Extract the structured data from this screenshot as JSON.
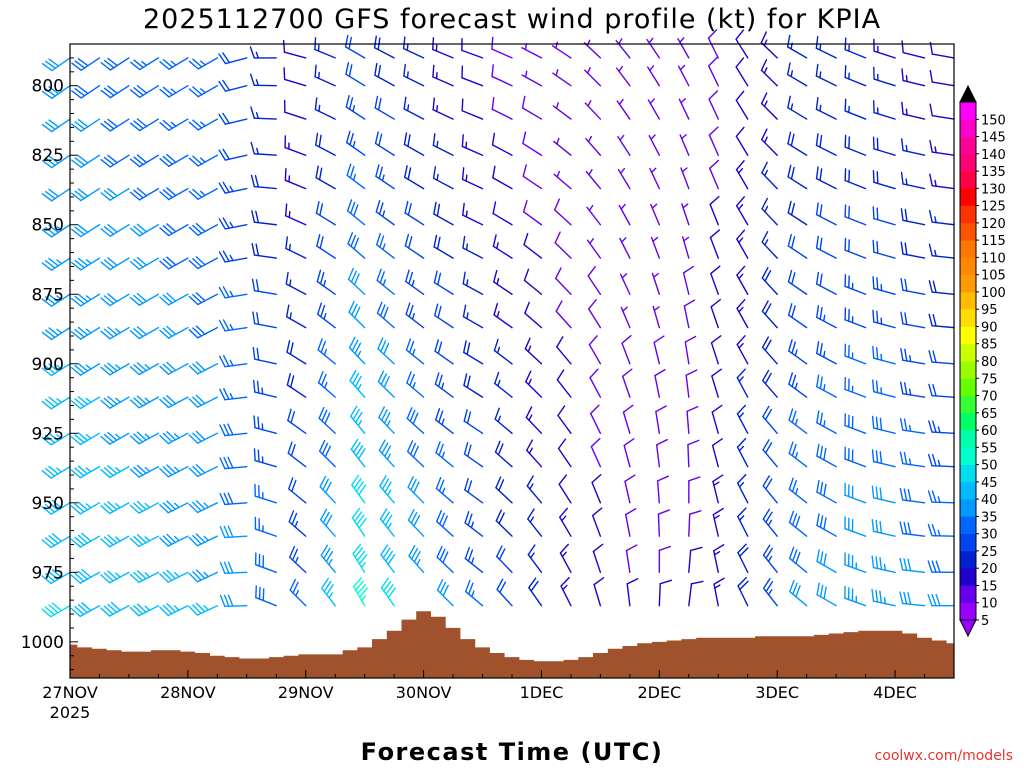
{
  "chart_data": {
    "type": "wind-barb-profile",
    "title": "2025112700 GFS forecast wind profile (kt) for KPIA",
    "xlabel": "Forecast Time (UTC)",
    "ylabel": "",
    "credit": "coolwx.com/models",
    "y_axis": {
      "unit": "hPa",
      "range": [
        785,
        1013
      ],
      "ticks": [
        {
          "value": 800,
          "label": "800"
        },
        {
          "value": 825,
          "label": "825"
        },
        {
          "value": 850,
          "label": "850"
        },
        {
          "value": 875,
          "label": "875"
        },
        {
          "value": 900,
          "label": "900"
        },
        {
          "value": 925,
          "label": "925"
        },
        {
          "value": 950,
          "label": "950"
        },
        {
          "value": 975,
          "label": "975"
        },
        {
          "value": 1000,
          "label": "1000"
        }
      ]
    },
    "x_axis": {
      "unit": "forecast hours",
      "range": [
        0,
        180
      ],
      "ticks": [
        {
          "value": 0,
          "label": "27NOV",
          "sublabel": "2025"
        },
        {
          "value": 24,
          "label": "28NOV",
          "sublabel": ""
        },
        {
          "value": 48,
          "label": "29NOV",
          "sublabel": ""
        },
        {
          "value": 72,
          "label": "30NOV",
          "sublabel": ""
        },
        {
          "value": 96,
          "label": "1DEC",
          "sublabel": ""
        },
        {
          "value": 120,
          "label": "2DEC",
          "sublabel": ""
        },
        {
          "value": 144,
          "label": "3DEC",
          "sublabel": ""
        },
        {
          "value": 168,
          "label": "4DEC",
          "sublabel": ""
        }
      ]
    },
    "levels": [
      790,
      800,
      812,
      825,
      837,
      850,
      862,
      875,
      887,
      900,
      912,
      925,
      937,
      950,
      962,
      975,
      987
    ],
    "times": [
      0,
      6,
      12,
      18,
      24,
      30,
      36,
      42,
      48,
      54,
      60,
      66,
      72,
      78,
      84,
      90,
      96,
      102,
      108,
      114,
      120,
      126,
      132,
      138,
      144,
      150,
      156,
      162,
      168,
      174,
      180
    ],
    "wind_keyframes": [
      {
        "hour": 0,
        "dir": [
          235,
          240
        ],
        "spd": [
          30,
          40
        ]
      },
      {
        "hour": 30,
        "dir": [
          240,
          245
        ],
        "spd": [
          25,
          35
        ]
      },
      {
        "hour": 48,
        "dir": [
          285,
          315
        ],
        "spd": [
          10,
          25
        ]
      },
      {
        "hour": 60,
        "dir": [
          300,
          330
        ],
        "spd": [
          20,
          45
        ]
      },
      {
        "hour": 72,
        "dir": [
          295,
          320
        ],
        "spd": [
          15,
          35
        ]
      },
      {
        "hour": 84,
        "dir": [
          290,
          310
        ],
        "spd": [
          10,
          25
        ]
      },
      {
        "hour": 100,
        "dir": [
          300,
          330
        ],
        "spd": [
          5,
          15
        ]
      },
      {
        "hour": 112,
        "dir": [
          320,
          350
        ],
        "spd": [
          5,
          10
        ]
      },
      {
        "hour": 125,
        "dir": [
          330,
          10
        ],
        "spd": [
          5,
          10
        ]
      },
      {
        "hour": 135,
        "dir": [
          335,
          340
        ],
        "spd": [
          10,
          15
        ]
      },
      {
        "hour": 150,
        "dir": [
          300,
          310
        ],
        "spd": [
          15,
          30
        ]
      },
      {
        "hour": 165,
        "dir": [
          290,
          285
        ],
        "spd": [
          15,
          35
        ]
      },
      {
        "hour": 180,
        "dir": [
          280,
          270
        ],
        "spd": [
          10,
          30
        ]
      }
    ],
    "surface_pressure": {
      "hours": [
        0,
        3,
        6,
        9,
        12,
        15,
        18,
        21,
        24,
        27,
        30,
        33,
        36,
        39,
        42,
        45,
        48,
        51,
        54,
        57,
        60,
        63,
        66,
        69,
        72,
        75,
        78,
        81,
        84,
        87,
        90,
        93,
        96,
        99,
        102,
        105,
        108,
        111,
        114,
        117,
        120,
        123,
        126,
        129,
        132,
        135,
        138,
        141,
        144,
        147,
        150,
        153,
        156,
        159,
        162,
        165,
        168,
        171,
        174,
        177,
        180
      ],
      "values": [
        1001,
        1002,
        1002.5,
        1003,
        1003.5,
        1003.5,
        1003,
        1003,
        1003.5,
        1004,
        1005,
        1005.5,
        1006,
        1006,
        1005.5,
        1005,
        1004.5,
        1004.5,
        1004.5,
        1003,
        1002,
        999,
        996,
        992,
        989,
        991,
        995,
        999,
        1002,
        1004,
        1005.5,
        1006.5,
        1007,
        1007,
        1006.5,
        1005.5,
        1004,
        1002.5,
        1001.5,
        1000.5,
        1000,
        999.5,
        999,
        998.5,
        998.5,
        998.5,
        998.5,
        998,
        998,
        998,
        998,
        997.5,
        997,
        996.5,
        996,
        996,
        996,
        997,
        998.5,
        999.5,
        1000.5
      ]
    },
    "colorbar": {
      "min": 0,
      "max": 150,
      "labels": [
        "5",
        "10",
        "15",
        "20",
        "25",
        "30",
        "35",
        "40",
        "45",
        "50",
        "55",
        "60",
        "65",
        "70",
        "75",
        "80",
        "85",
        "90",
        "95",
        "100",
        "105",
        "110",
        "115",
        "120",
        "125",
        "130",
        "135",
        "140",
        "145",
        "150"
      ],
      "colors": [
        "#9900ff",
        "#6600ee",
        "#2200cc",
        "#0022cc",
        "#0044ee",
        "#0066ff",
        "#0099ff",
        "#00bbff",
        "#00ddee",
        "#00ffcc",
        "#00ffaa",
        "#00ff66",
        "#33ff33",
        "#66ff00",
        "#99ff00",
        "#ccff00",
        "#ffff00",
        "#ffdd00",
        "#ffbb00",
        "#ff9900",
        "#ff8800",
        "#ff7700",
        "#ff5500",
        "#ff3300",
        "#ff0000",
        "#ff0044",
        "#ff0077",
        "#ff0099",
        "#ff00cc",
        "#ff00ff"
      ]
    },
    "colors": {
      "terrain": "#a0522d",
      "frame": "#000000"
    }
  }
}
